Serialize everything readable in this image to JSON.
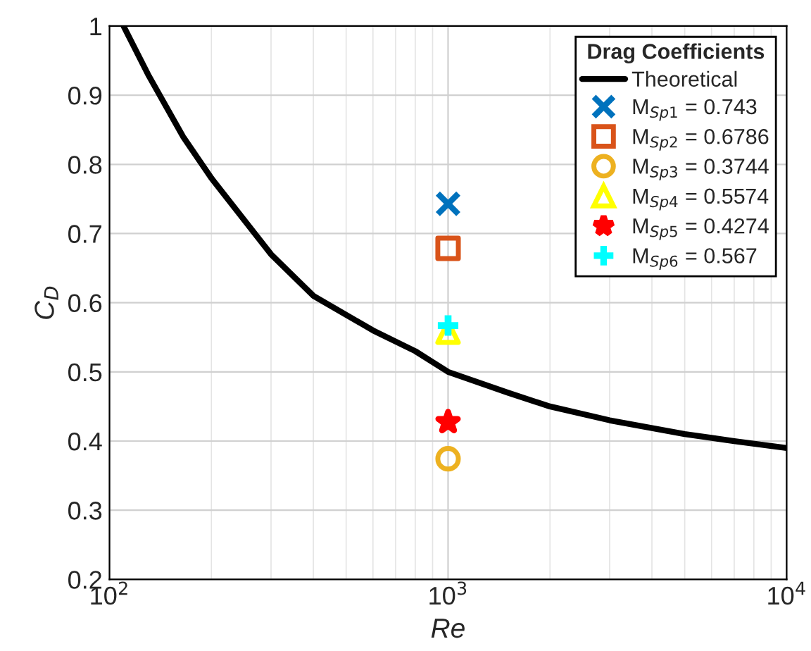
{
  "chart_data": {
    "type": "scatter",
    "xlabel": "Re",
    "ylabel": "C$_{D}$",
    "legend_title": "Drag Coefficients",
    "log": "x",
    "xlim": [
      100,
      10000
    ],
    "ylim": [
      0.2,
      1
    ],
    "xticks": [
      {
        "value": 100,
        "label": "10$^{2}$"
      },
      {
        "value": 1000,
        "label": "10$^{3}$"
      },
      {
        "value": 10000,
        "label": "10$^{4}$"
      }
    ],
    "yticks": [
      0.2,
      0.3,
      0.4,
      0.5,
      0.6,
      0.7,
      0.8,
      0.9,
      1
    ],
    "grid": true,
    "legend": "top right",
    "series": [
      {
        "name": "Theoretical",
        "type": "line",
        "color": "#000000",
        "marker": "none",
        "x": [
          110,
          130,
          165,
          200,
          300,
          400,
          600,
          800,
          1000,
          1500,
          2000,
          3000,
          5000,
          7000,
          10000
        ],
        "values": [
          1.0,
          0.93,
          0.84,
          0.78,
          0.67,
          0.61,
          0.56,
          0.53,
          0.5,
          0.47,
          0.45,
          0.43,
          0.41,
          0.4,
          0.39
        ]
      },
      {
        "name": "M$_{Sp1}$ = 0.743",
        "color": "#0072bd",
        "marker": "cross",
        "x": [
          1000
        ],
        "values": [
          0.743
        ]
      },
      {
        "name": "M$_{Sp2}$ = 0.6786",
        "color": "#d95319",
        "marker": "square",
        "x": [
          1000
        ],
        "values": [
          0.6786
        ]
      },
      {
        "name": "M$_{Sp3}$ = 0.3744",
        "color": "#edb120",
        "marker": "circle",
        "x": [
          1000
        ],
        "values": [
          0.3744
        ]
      },
      {
        "name": "M$_{Sp4}$ = 0.5574",
        "color": "#ffff00",
        "marker": "triangle",
        "x": [
          1000
        ],
        "values": [
          0.5574
        ]
      },
      {
        "name": "M$_{Sp5}$ = 0.4274",
        "color": "#ff0000",
        "marker": "star",
        "x": [
          1000
        ],
        "values": [
          0.4274
        ]
      },
      {
        "name": "M$_{Sp6}$ = 0.567",
        "color": "#00ffff",
        "marker": "plus",
        "x": [
          1000
        ],
        "values": [
          0.567
        ]
      }
    ]
  }
}
